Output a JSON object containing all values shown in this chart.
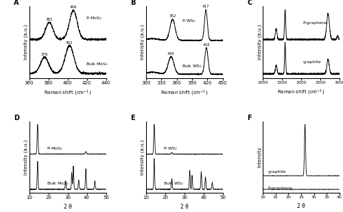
{
  "fig_width": 5.0,
  "fig_height": 3.09,
  "dpi": 100,
  "background": "#ffffff",
  "panel_labels": [
    "A",
    "B",
    "C",
    "D",
    "E",
    "F"
  ],
  "panel_A": {
    "xlim": [
      360,
      440
    ],
    "xticks": [
      360,
      380,
      400,
      420,
      440
    ],
    "xlabel": "Raman shift (cm$^{-1}$)",
    "ylabel": "Intensity (a.u.)"
  },
  "panel_B": {
    "xlim": [
      300,
      450
    ],
    "xticks": [
      300,
      330,
      360,
      390,
      420,
      450
    ],
    "xlabel": "Raman shift (cm$^{-1}$)",
    "ylabel": "Intensity (a.u.)"
  },
  "panel_C": {
    "xlim": [
      1000,
      3000
    ],
    "xticks": [
      1000,
      1500,
      2000,
      2500,
      3000
    ],
    "xlabel": "Raman shift (cm$^{-1}$)",
    "ylabel": "Intensity (a.u.)"
  },
  "panel_D": {
    "xlim": [
      10,
      50
    ],
    "xticks": [
      10,
      20,
      30,
      40,
      50
    ],
    "xlabel": "2 θ",
    "ylabel": "Intensity (a.u.)"
  },
  "panel_E": {
    "xlim": [
      10,
      50
    ],
    "xticks": [
      10,
      20,
      30,
      40,
      50
    ],
    "xlabel": "2 θ",
    "ylabel": "Intensity (a.u.)"
  },
  "panel_F": {
    "xlim": [
      10,
      40
    ],
    "xticks": [
      10,
      15,
      20,
      25,
      30,
      35,
      40
    ],
    "xlabel": "2 θ",
    "ylabel": "Intensity"
  }
}
